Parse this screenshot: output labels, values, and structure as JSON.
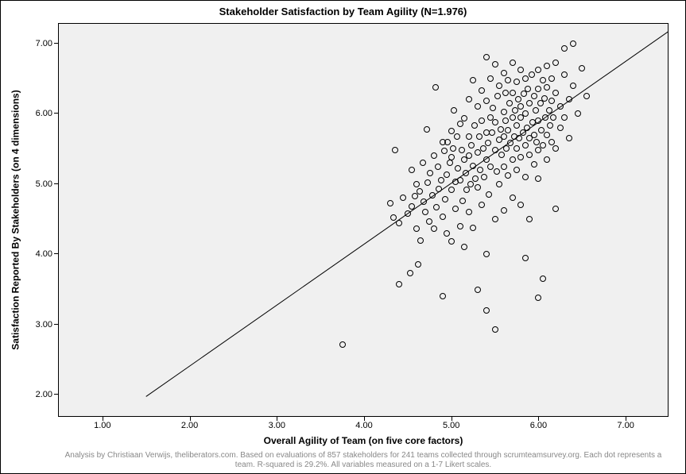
{
  "chart": {
    "type": "scatter",
    "title": "Stakeholder Satisfaction by Team Agility (N=1.976)",
    "xlabel": "Overall Agility of Team (on five core factors)",
    "ylabel": "Satisfaction Reported By Stakeholders (on 4 dimensions)",
    "caption": "Analysis by Christiaan Verwijs, theliberators.com. Based on evaluations of 857 stakeholders for 241 teams collected through scrumteamsurvey.org. Each dot represents a team. R-squared is 29.2%. All variables measured on a 1-7 Likert scales.",
    "title_fontsize": 13,
    "label_fontsize": 12,
    "tick_fontsize": 11,
    "caption_fontsize": 10,
    "caption_color": "#888888",
    "background_color": "#ffffff",
    "plot_background_color": "#f0f0f0",
    "border_color": "#000000",
    "xlim": [
      0.5,
      7.5
    ],
    "ylim": [
      1.7,
      7.3
    ],
    "xticks": [
      1.0,
      2.0,
      3.0,
      4.0,
      5.0,
      6.0,
      7.0
    ],
    "yticks": [
      2.0,
      3.0,
      4.0,
      5.0,
      6.0,
      7.0
    ],
    "xtick_labels": [
      "1.00",
      "2.00",
      "3.00",
      "4.00",
      "5.00",
      "6.00",
      "7.00"
    ],
    "ytick_labels": [
      "2.00",
      "3.00",
      "4.00",
      "5.00",
      "6.00",
      "7.00"
    ],
    "marker": {
      "type": "circle",
      "size": 8,
      "fill": "transparent",
      "stroke": "#000000",
      "stroke_width": 1
    },
    "trend_line": {
      "color": "#000000",
      "width": 1,
      "x1": 1.5,
      "y1": 2.0,
      "x2": 7.5,
      "y2": 7.2
    },
    "points": [
      [
        3.75,
        2.72
      ],
      [
        4.3,
        4.73
      ],
      [
        4.34,
        4.52
      ],
      [
        4.36,
        5.48
      ],
      [
        4.4,
        3.58
      ],
      [
        4.4,
        4.44
      ],
      [
        4.45,
        4.8
      ],
      [
        4.5,
        4.58
      ],
      [
        4.53,
        3.73
      ],
      [
        4.55,
        4.68
      ],
      [
        4.55,
        5.2
      ],
      [
        4.58,
        4.83
      ],
      [
        4.6,
        5.0
      ],
      [
        4.6,
        4.37
      ],
      [
        4.62,
        3.86
      ],
      [
        4.64,
        4.9
      ],
      [
        4.65,
        4.2
      ],
      [
        4.67,
        5.3
      ],
      [
        4.68,
        4.75
      ],
      [
        4.7,
        4.6
      ],
      [
        4.72,
        5.78
      ],
      [
        4.73,
        5.02
      ],
      [
        4.75,
        4.47
      ],
      [
        4.76,
        5.15
      ],
      [
        4.78,
        4.84
      ],
      [
        4.8,
        4.37
      ],
      [
        4.8,
        5.4
      ],
      [
        4.82,
        6.38
      ],
      [
        4.83,
        4.67
      ],
      [
        4.85,
        5.25
      ],
      [
        4.86,
        4.93
      ],
      [
        4.88,
        5.05
      ],
      [
        4.9,
        4.53
      ],
      [
        4.9,
        5.6
      ],
      [
        4.9,
        3.4
      ],
      [
        4.92,
        5.47
      ],
      [
        4.93,
        4.78
      ],
      [
        4.95,
        5.13
      ],
      [
        4.95,
        4.3
      ],
      [
        4.96,
        5.6
      ],
      [
        4.98,
        5.3
      ],
      [
        5.0,
        4.92
      ],
      [
        5.0,
        5.75
      ],
      [
        5.0,
        5.38
      ],
      [
        5.0,
        4.18
      ],
      [
        5.02,
        5.5
      ],
      [
        5.03,
        6.05
      ],
      [
        5.05,
        5.03
      ],
      [
        5.05,
        4.65
      ],
      [
        5.07,
        5.68
      ],
      [
        5.08,
        5.22
      ],
      [
        5.1,
        4.4
      ],
      [
        5.1,
        5.86
      ],
      [
        5.1,
        5.05
      ],
      [
        5.12,
        5.48
      ],
      [
        5.13,
        4.76
      ],
      [
        5.15,
        5.93
      ],
      [
        5.15,
        5.35
      ],
      [
        5.15,
        4.1
      ],
      [
        5.17,
        5.15
      ],
      [
        5.18,
        4.92
      ],
      [
        5.2,
        5.68
      ],
      [
        5.2,
        6.2
      ],
      [
        5.2,
        5.4
      ],
      [
        5.2,
        4.6
      ],
      [
        5.22,
        5.0
      ],
      [
        5.23,
        5.55
      ],
      [
        5.25,
        6.48
      ],
      [
        5.25,
        5.26
      ],
      [
        5.25,
        4.38
      ],
      [
        5.27,
        5.83
      ],
      [
        5.28,
        5.08
      ],
      [
        5.3,
        3.5
      ],
      [
        5.3,
        5.45
      ],
      [
        5.3,
        6.1
      ],
      [
        5.3,
        4.95
      ],
      [
        5.32,
        5.67
      ],
      [
        5.33,
        5.2
      ],
      [
        5.35,
        5.9
      ],
      [
        5.35,
        4.7
      ],
      [
        5.35,
        6.33
      ],
      [
        5.37,
        5.5
      ],
      [
        5.38,
        5.1
      ],
      [
        5.4,
        6.8
      ],
      [
        5.4,
        5.73
      ],
      [
        5.4,
        4.0
      ],
      [
        5.4,
        6.18
      ],
      [
        5.4,
        5.35
      ],
      [
        5.42,
        5.58
      ],
      [
        5.43,
        4.85
      ],
      [
        5.45,
        5.95
      ],
      [
        5.45,
        6.5
      ],
      [
        5.45,
        5.25
      ],
      [
        5.47,
        5.73
      ],
      [
        5.48,
        6.08
      ],
      [
        5.5,
        4.5
      ],
      [
        5.5,
        5.48
      ],
      [
        5.5,
        6.7
      ],
      [
        5.5,
        5.88
      ],
      [
        5.5,
        2.93
      ],
      [
        5.52,
        5.18
      ],
      [
        5.53,
        6.25
      ],
      [
        5.55,
        5.63
      ],
      [
        5.55,
        6.4
      ],
      [
        5.55,
        5.0
      ],
      [
        5.57,
        5.78
      ],
      [
        5.58,
        5.42
      ],
      [
        5.6,
        6.58
      ],
      [
        5.6,
        5.25
      ],
      [
        5.6,
        6.02
      ],
      [
        5.6,
        4.62
      ],
      [
        5.6,
        5.68
      ],
      [
        5.62,
        5.9
      ],
      [
        5.62,
        6.3
      ],
      [
        5.63,
        5.5
      ],
      [
        5.65,
        6.48
      ],
      [
        5.65,
        5.12
      ],
      [
        5.65,
        5.77
      ],
      [
        5.67,
        6.15
      ],
      [
        5.68,
        5.58
      ],
      [
        5.7,
        6.73
      ],
      [
        5.7,
        5.35
      ],
      [
        5.7,
        5.95
      ],
      [
        5.7,
        4.8
      ],
      [
        5.7,
        6.3
      ],
      [
        5.72,
        5.68
      ],
      [
        5.73,
        6.05
      ],
      [
        5.75,
        5.5
      ],
      [
        5.75,
        6.45
      ],
      [
        5.75,
        5.2
      ],
      [
        5.75,
        5.83
      ],
      [
        5.77,
        6.2
      ],
      [
        5.78,
        5.65
      ],
      [
        5.8,
        6.62
      ],
      [
        5.8,
        5.95
      ],
      [
        5.8,
        5.38
      ],
      [
        5.8,
        6.1
      ],
      [
        5.8,
        4.7
      ],
      [
        5.82,
        5.73
      ],
      [
        5.83,
        6.28
      ],
      [
        5.85,
        5.55
      ],
      [
        5.85,
        6.5
      ],
      [
        5.85,
        5.1
      ],
      [
        5.85,
        6.0
      ],
      [
        5.87,
        5.8
      ],
      [
        5.88,
        6.35
      ],
      [
        5.9,
        5.65
      ],
      [
        5.9,
        6.15
      ],
      [
        5.9,
        4.5
      ],
      [
        5.9,
        5.42
      ],
      [
        5.92,
        6.55
      ],
      [
        5.93,
        5.88
      ],
      [
        5.95,
        6.25
      ],
      [
        5.95,
        5.7
      ],
      [
        5.95,
        5.28
      ],
      [
        5.97,
        6.05
      ],
      [
        5.98,
        5.6
      ],
      [
        6.0,
        6.62
      ],
      [
        6.0,
        5.9
      ],
      [
        6.0,
        6.35
      ],
      [
        6.0,
        5.48
      ],
      [
        6.0,
        5.08
      ],
      [
        6.02,
        6.15
      ],
      [
        6.03,
        5.77
      ],
      [
        6.05,
        6.48
      ],
      [
        6.05,
        3.65
      ],
      [
        6.05,
        5.55
      ],
      [
        6.07,
        6.22
      ],
      [
        6.08,
        5.95
      ],
      [
        6.1,
        6.68
      ],
      [
        6.1,
        5.7
      ],
      [
        6.1,
        6.38
      ],
      [
        6.1,
        5.35
      ],
      [
        6.12,
        6.05
      ],
      [
        6.13,
        5.83
      ],
      [
        6.15,
        6.5
      ],
      [
        6.15,
        5.6
      ],
      [
        6.15,
        6.18
      ],
      [
        6.17,
        5.95
      ],
      [
        6.2,
        4.65
      ],
      [
        6.2,
        6.73
      ],
      [
        6.2,
        5.5
      ],
      [
        6.2,
        6.3
      ],
      [
        6.25,
        6.1
      ],
      [
        6.25,
        5.8
      ],
      [
        6.3,
        6.55
      ],
      [
        6.3,
        5.95
      ],
      [
        6.3,
        6.93
      ],
      [
        6.35,
        6.2
      ],
      [
        6.35,
        5.65
      ],
      [
        6.4,
        7.0
      ],
      [
        6.4,
        6.4
      ],
      [
        6.45,
        6.0
      ],
      [
        6.5,
        6.65
      ],
      [
        6.55,
        6.25
      ],
      [
        6.0,
        3.38
      ],
      [
        5.85,
        3.95
      ],
      [
        5.4,
        3.2
      ]
    ]
  }
}
